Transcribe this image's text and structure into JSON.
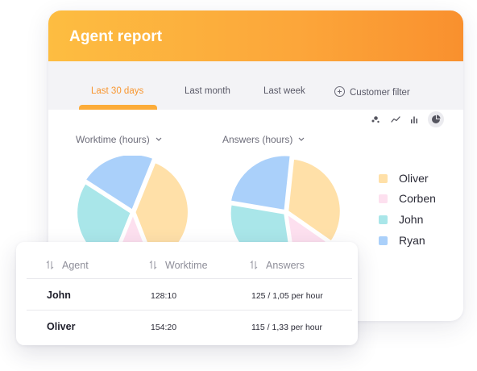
{
  "report": {
    "title": "Agent report",
    "tabs": [
      {
        "label": "Last 30 days",
        "active": true
      },
      {
        "label": "Last month",
        "active": false
      },
      {
        "label": "Last week",
        "active": false
      },
      {
        "label": "Customer filter",
        "active": false,
        "icon": "plus-circle-icon"
      }
    ],
    "chart_types": [
      {
        "icon": "scatter-chart-icon",
        "active": false
      },
      {
        "icon": "line-chart-icon",
        "active": false
      },
      {
        "icon": "bar-chart-icon",
        "active": false
      },
      {
        "icon": "pie-chart-icon",
        "active": true
      }
    ],
    "worktime_dropdown": "Worktime (hours)",
    "answers_dropdown": "Answers (hours)"
  },
  "legend": [
    {
      "label": "Oliver",
      "color": "#ffe0a8"
    },
    {
      "label": "Corben",
      "color": "#fde0ef"
    },
    {
      "label": "John",
      "color": "#a9e6e9"
    },
    {
      "label": "Ryan",
      "color": "#aad0fa"
    }
  ],
  "chart_data": [
    {
      "type": "pie",
      "title": "Worktime (hours)",
      "labels": [
        "Oliver",
        "Corben",
        "John",
        "Ryan"
      ],
      "values": [
        38,
        12,
        28,
        22
      ],
      "colors": [
        "#ffe0a8",
        "#fde0ef",
        "#a9e6e9",
        "#aad0fa"
      ]
    },
    {
      "type": "pie",
      "title": "Answers (hours)",
      "labels": [
        "Oliver",
        "Corben",
        "John",
        "Ryan"
      ],
      "values": [
        33,
        13,
        30,
        24
      ],
      "colors": [
        "#ffe0a8",
        "#fde0ef",
        "#a9e6e9",
        "#aad0fa"
      ]
    }
  ],
  "table": {
    "headers": [
      "Agent",
      "Worktime",
      "Answers"
    ],
    "rows": [
      {
        "agent": "John",
        "worktime": "128:10",
        "answers": "125 / 1,05 per hour"
      },
      {
        "agent": "Oliver",
        "worktime": "154:20",
        "answers": "115 / 1,33 per hour"
      }
    ]
  }
}
